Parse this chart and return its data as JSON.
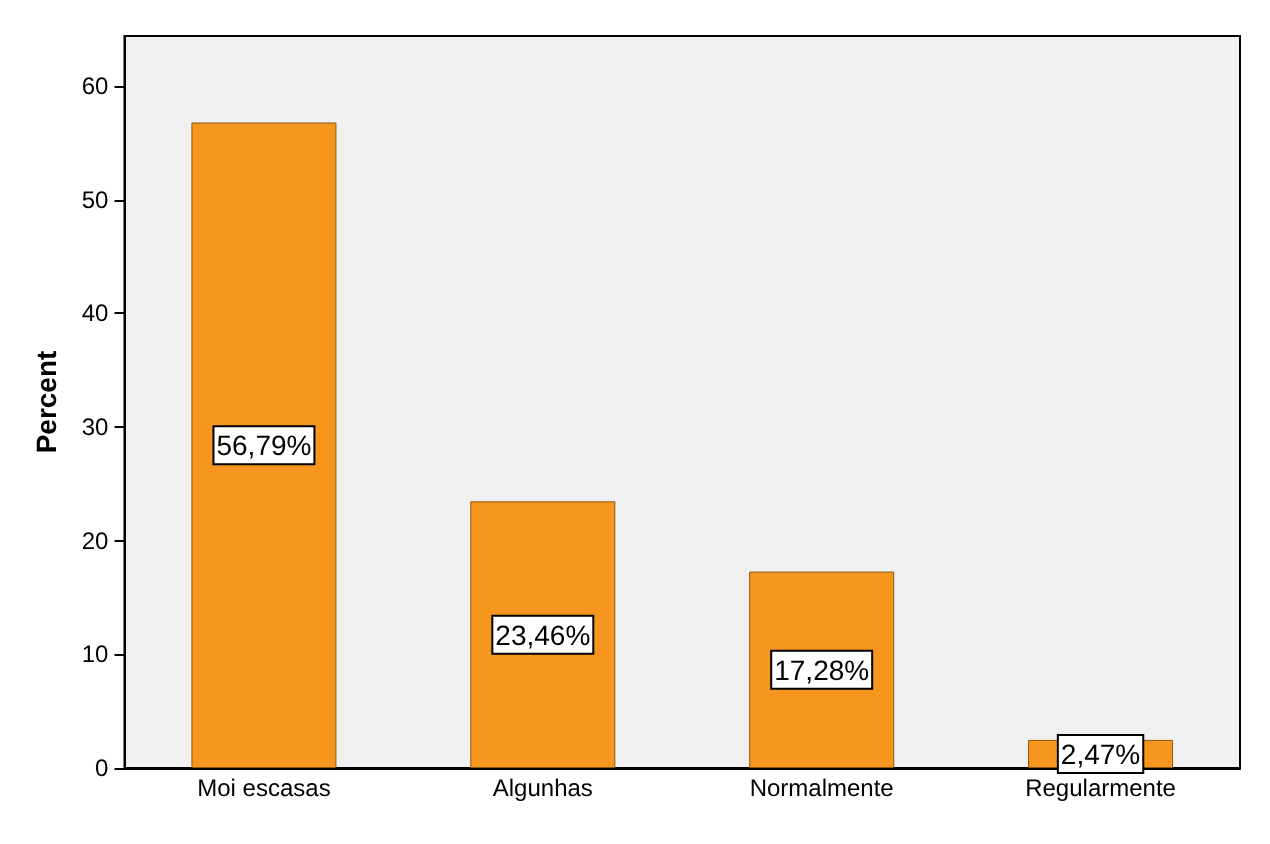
{
  "chart_data": {
    "type": "bar",
    "ylabel": "Percent",
    "categories": [
      "Moi escasas",
      "Algunhas",
      "Normalmente",
      "Regularmente"
    ],
    "values": [
      56.79,
      23.46,
      17.28,
      2.47
    ],
    "color": "#f7961e",
    "value_labels": [
      "56,79%",
      "23,46%",
      "17,28%",
      "2,47%"
    ],
    "ylim": [
      0,
      64.4
    ],
    "yticks": [
      0,
      10,
      20,
      30,
      40,
      50,
      60
    ],
    "grid": false
  }
}
